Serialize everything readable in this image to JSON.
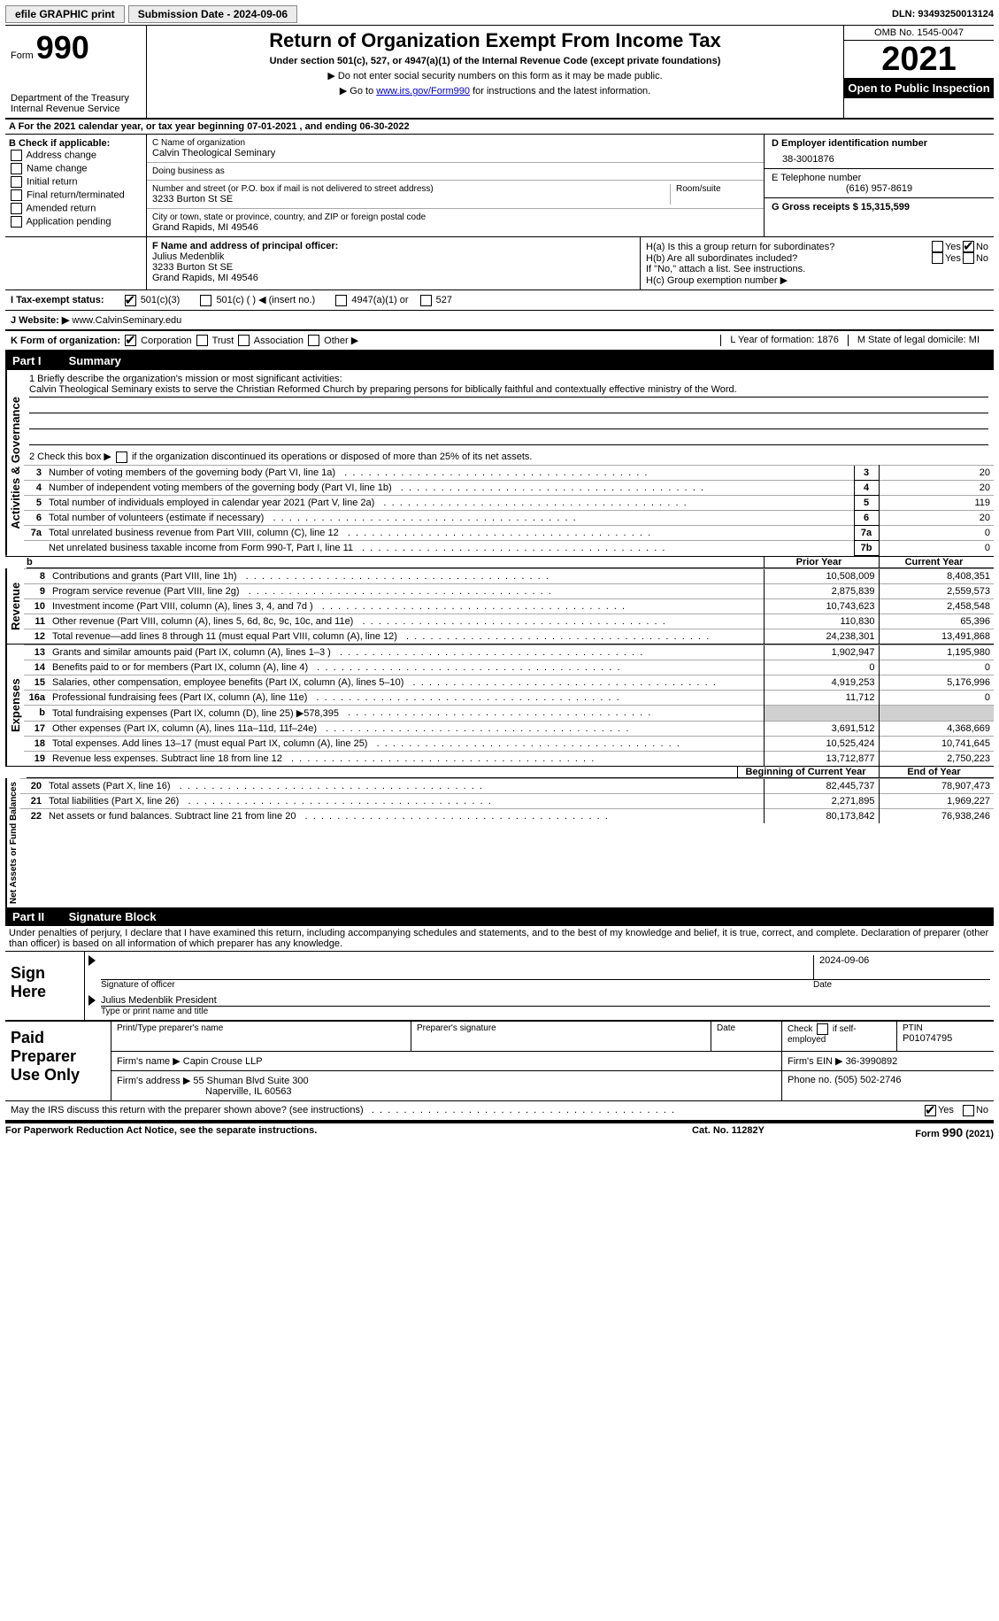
{
  "top": {
    "efile": "efile GRAPHIC print",
    "submission_label": "Submission Date - 2024-09-06",
    "dln": "DLN: 93493250013124"
  },
  "header": {
    "form_label": "Form",
    "form_num": "990",
    "title": "Return of Organization Exempt From Income Tax",
    "subtitle": "Under section 501(c), 527, or 4947(a)(1) of the Internal Revenue Code (except private foundations)",
    "note1": "▶ Do not enter social security numbers on this form as it may be made public.",
    "note2": "▶ Go to ",
    "note2_link": "www.irs.gov/Form990",
    "note2_after": " for instructions and the latest information.",
    "dept": "Department of the Treasury\nInternal Revenue Service",
    "omb": "OMB No. 1545-0047",
    "year": "2021",
    "inspection": "Open to Public Inspection"
  },
  "period": {
    "line": "A For the 2021 calendar year, or tax year beginning 07-01-2021   , and ending 06-30-2022"
  },
  "applicable": {
    "label": "B Check if applicable:",
    "items": [
      "Address change",
      "Name change",
      "Initial return",
      "Final return/terminated",
      "Amended return",
      "Application pending"
    ]
  },
  "org": {
    "name_label": "C Name of organization",
    "name": "Calvin Theological Seminary",
    "dba_label": "Doing business as",
    "dba": "",
    "address_label": "Number and street (or P.O. box if mail is not delivered to street address)",
    "room_label": "Room/suite",
    "address": "3233 Burton St SE",
    "city_label": "City or town, state or province, country, and ZIP or foreign postal code",
    "city": "Grand Rapids, MI  49546",
    "officer_label": "F Name and address of principal officer:",
    "officer_name": "Julius Medenblik",
    "officer_addr1": "3233 Burton St SE",
    "officer_addr2": "Grand Rapids, MI  49546"
  },
  "right": {
    "ein_label": "D Employer identification number",
    "ein": "38-3001876",
    "phone_label": "E Telephone number",
    "phone": "(616) 957-8619",
    "gross_label": "G Gross receipts $ 15,315,599",
    "h_a": "H(a)  Is this a group return for subordinates?",
    "h_b": "H(b)  Are all subordinates included?",
    "h_note": "If \"No,\" attach a list. See instructions.",
    "h_c": "H(c)  Group exemption number ▶"
  },
  "status": {
    "label": "I   Tax-exempt status:",
    "opt1": "501(c)(3)",
    "opt2": "501(c) (  ) ◀ (insert no.)",
    "opt3": "4947(a)(1) or",
    "opt4": "527"
  },
  "website": {
    "label": "J   Website: ▶",
    "value": "www.CalvinSeminary.edu"
  },
  "form_of_org": {
    "label": "K Form of organization:",
    "opts": [
      "Corporation",
      "Trust",
      "Association",
      "Other ▶"
    ],
    "year_label": "L Year of formation: 1876",
    "state_label": "M State of legal domicile: MI"
  },
  "part1": {
    "title": "Summary",
    "mission_label": "1   Briefly describe the organization's mission or most significant activities:",
    "mission": "Calvin Theological Seminary exists to serve the Christian Reformed Church by preparing persons for biblically faithful and contextually effective ministry of the Word.",
    "line2": "2   Check this box ▶",
    "line2_after": " if the organization discontinued its operations or disposed of more than 25% of its net assets.",
    "vertical_labels": [
      "Activities & Governance",
      "Revenue",
      "Expenses",
      "Net Assets or Fund Balances"
    ],
    "lines_gov": [
      {
        "n": "3",
        "desc": "Number of voting members of the governing body (Part VI, line 1a)",
        "box": "3",
        "val": "20"
      },
      {
        "n": "4",
        "desc": "Number of independent voting members of the governing body (Part VI, line 1b)",
        "box": "4",
        "val": "20"
      },
      {
        "n": "5",
        "desc": "Total number of individuals employed in calendar year 2021 (Part V, line 2a)",
        "box": "5",
        "val": "119"
      },
      {
        "n": "6",
        "desc": "Total number of volunteers (estimate if necessary)",
        "box": "6",
        "val": "20"
      },
      {
        "n": "7a",
        "desc": "Total unrelated business revenue from Part VIII, column (C), line 12",
        "box": "7a",
        "val": "0"
      },
      {
        "n": "",
        "desc": "Net unrelated business taxable income from Form 990-T, Part I, line 11",
        "box": "7b",
        "val": "0"
      }
    ],
    "col_headers": {
      "prior": "Prior Year",
      "current": "Current Year"
    },
    "lines_rev": [
      {
        "n": "8",
        "desc": "Contributions and grants (Part VIII, line 1h)",
        "p": "10,508,009",
        "c": "8,408,351"
      },
      {
        "n": "9",
        "desc": "Program service revenue (Part VIII, line 2g)",
        "p": "2,875,839",
        "c": "2,559,573"
      },
      {
        "n": "10",
        "desc": "Investment income (Part VIII, column (A), lines 3, 4, and 7d )",
        "p": "10,743,623",
        "c": "2,458,548"
      },
      {
        "n": "11",
        "desc": "Other revenue (Part VIII, column (A), lines 5, 6d, 8c, 9c, 10c, and 11e)",
        "p": "110,830",
        "c": "65,396"
      },
      {
        "n": "12",
        "desc": "Total revenue—add lines 8 through 11 (must equal Part VIII, column (A), line 12)",
        "p": "24,238,301",
        "c": "13,491,868"
      }
    ],
    "lines_exp": [
      {
        "n": "13",
        "desc": "Grants and similar amounts paid (Part IX, column (A), lines 1–3 )",
        "p": "1,902,947",
        "c": "1,195,980"
      },
      {
        "n": "14",
        "desc": "Benefits paid to or for members (Part IX, column (A), line 4)",
        "p": "0",
        "c": "0"
      },
      {
        "n": "15",
        "desc": "Salaries, other compensation, employee benefits (Part IX, column (A), lines 5–10)",
        "p": "4,919,253",
        "c": "5,176,996"
      },
      {
        "n": "16a",
        "desc": "Professional fundraising fees (Part IX, column (A), line 11e)",
        "p": "11,712",
        "c": "0"
      },
      {
        "n": "b",
        "desc": "Total fundraising expenses (Part IX, column (D), line 25) ▶578,395",
        "p": "",
        "c": "",
        "shaded": true
      },
      {
        "n": "17",
        "desc": "Other expenses (Part IX, column (A), lines 11a–11d, 11f–24e)",
        "p": "3,691,512",
        "c": "4,368,669"
      },
      {
        "n": "18",
        "desc": "Total expenses. Add lines 13–17 (must equal Part IX, column (A), line 25)",
        "p": "10,525,424",
        "c": "10,741,645"
      },
      {
        "n": "19",
        "desc": "Revenue less expenses. Subtract line 18 from line 12",
        "p": "13,712,877",
        "c": "2,750,223"
      }
    ],
    "col_headers2": {
      "prior": "Beginning of Current Year",
      "current": "End of Year"
    },
    "lines_net": [
      {
        "n": "20",
        "desc": "Total assets (Part X, line 16)",
        "p": "82,445,737",
        "c": "78,907,473"
      },
      {
        "n": "21",
        "desc": "Total liabilities (Part X, line 26)",
        "p": "2,271,895",
        "c": "1,969,227"
      },
      {
        "n": "22",
        "desc": "Net assets or fund balances. Subtract line 21 from line 20",
        "p": "80,173,842",
        "c": "76,938,246"
      }
    ]
  },
  "part2": {
    "title": "Signature Block",
    "penalties": "Under penalties of perjury, I declare that I have examined this return, including accompanying schedules and statements, and to the best of my knowledge and belief, it is true, correct, and complete. Declaration of preparer (other than officer) is based on all information of which preparer has any knowledge.",
    "sign_here": "Sign Here",
    "sig_of_officer": "Signature of officer",
    "sig_date": "2024-09-06",
    "date_label": "Date",
    "officer_name": "Julius Medenblik  President",
    "type_label": "Type or print name and title",
    "paid": "Paid Preparer Use Only",
    "preparer_name_label": "Print/Type preparer's name",
    "preparer_sig_label": "Preparer's signature",
    "check_self": "Check          if self-employed",
    "ptin_label": "PTIN",
    "ptin": "P01074795",
    "firm_name_label": "Firm's name      ▶",
    "firm_name": "Capin Crouse LLP",
    "firm_ein_label": "Firm's EIN ▶",
    "firm_ein": "36-3990892",
    "firm_addr_label": "Firm's address ▶",
    "firm_addr1": "55 Shuman Blvd Suite 300",
    "firm_addr2": "Naperville, IL  60563",
    "phone_label": "Phone no.",
    "phone": "(505) 502-2746",
    "may_irs": "May the IRS discuss this return with the preparer shown above? (see instructions)",
    "footer_left": "For Paperwork Reduction Act Notice, see the separate instructions.",
    "footer_mid": "Cat. No. 11282Y",
    "footer_right": "Form 990 (2021)"
  }
}
